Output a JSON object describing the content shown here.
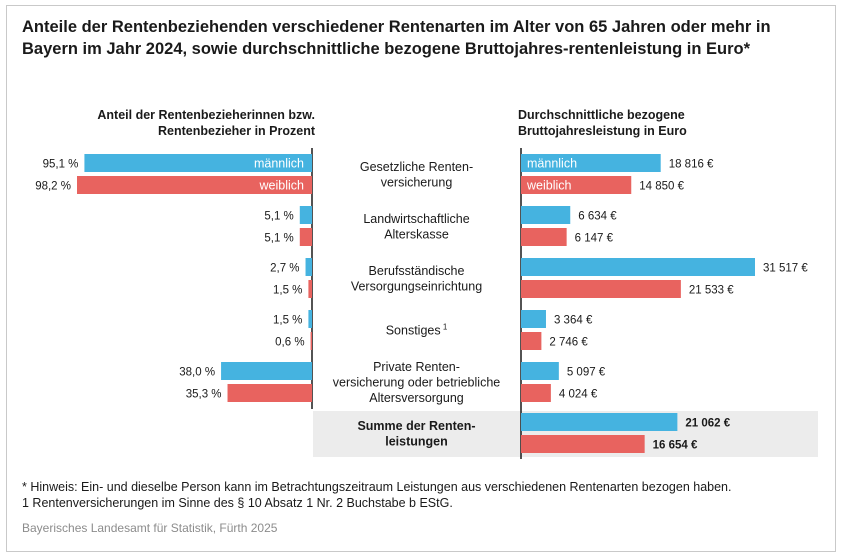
{
  "title": "Anteile der Rentenbeziehenden verschiedener Rentenarten im Alter von 65 Jahren oder mehr in Bayern im Jahr 2024, sowie durchschnittliche bezogene Bruttojahres-rentenleistung in Euro*",
  "left_header": "Anteil der Rentenbezieherinnen bzw. Rentenbezieher in Prozent",
  "right_header": "Durchschnittliche bezogene Bruttojahresleistung in Euro",
  "legend": {
    "male": "männlich",
    "female": "weiblich"
  },
  "colors": {
    "male": "#45b3e0",
    "female": "#e8635f",
    "sum_bg": "#ececec",
    "axis": "#1a1a1a"
  },
  "footnotes": [
    "* Hinweis: Ein- und dieselbe Person kann im Betrachtungszeitraum Leistungen aus verschiedenen Rentenarten bezogen haben.",
    "1 Rentenversicherungen im Sinne des § 10 Absatz 1 Nr. 2 Buchstabe b EStG."
  ],
  "source": "Bayerisches Landesamt für Statistik, Fürth 2025",
  "chart_data": {
    "type": "bar",
    "categories": [
      [
        "Gesetzliche Renten-",
        "versicherung"
      ],
      [
        "Landwirtschaftliche",
        "Alterskasse"
      ],
      [
        "Berufsständische",
        "Versorgungseinrichtung"
      ],
      [
        "Sonstiges"
      ],
      [
        "Private Renten-",
        "versicherung oder betriebliche",
        "Altersversorgung"
      ],
      [
        "Summe der Renten-",
        "leistungen"
      ]
    ],
    "category_superscripts": [
      "",
      "",
      "",
      "1",
      "",
      ""
    ],
    "share_percent": {
      "male": [
        95.1,
        5.1,
        2.7,
        1.5,
        38.0,
        null
      ],
      "female": [
        98.2,
        5.1,
        1.5,
        0.6,
        35.3,
        null
      ],
      "male_labels": [
        "95,1 %",
        "5,1 %",
        "2,7 %",
        "1,5 %",
        "38,0 %",
        ""
      ],
      "female_labels": [
        "98,2 %",
        "5,1 %",
        "1,5 %",
        "0,6 %",
        "35,3 %",
        ""
      ]
    },
    "annual_benefit_eur": {
      "male": [
        18816,
        6634,
        31517,
        3364,
        5097,
        21062
      ],
      "female": [
        14850,
        6147,
        21533,
        2746,
        4024,
        16654
      ],
      "male_labels": [
        "18 816 €",
        "6 634 €",
        "31 517 €",
        "3 364 €",
        "5 097 €",
        "21 062 €"
      ],
      "female_labels": [
        "14 850 €",
        "6 147 €",
        "21 533 €",
        "2 746 €",
        "4 024 €",
        "16 654 €"
      ]
    },
    "highlighted_category_index": 5
  }
}
